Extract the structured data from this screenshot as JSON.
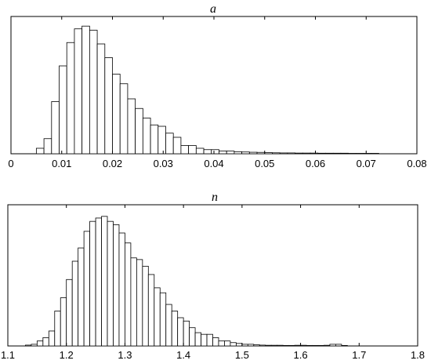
{
  "chart_data": [
    {
      "type": "bar",
      "title": "a",
      "xlabel": "",
      "ylabel": "",
      "xlim": [
        0,
        0.08
      ],
      "xticks": [
        "0",
        "0.01",
        "0.02",
        "0.03",
        "0.04",
        "0.05",
        "0.06",
        "0.07",
        "0.08"
      ],
      "bin_width": 0.0015,
      "bins_start": [
        0.005,
        0.0065,
        0.008,
        0.0095,
        0.011,
        0.0125,
        0.014,
        0.0155,
        0.017,
        0.0185,
        0.02,
        0.0215,
        0.023,
        0.0245,
        0.026,
        0.0275,
        0.029,
        0.0305,
        0.032,
        0.0335,
        0.035,
        0.0365,
        0.038,
        0.0395,
        0.041,
        0.0425,
        0.044,
        0.0455,
        0.047,
        0.0485,
        0.05,
        0.0515,
        0.053,
        0.0545,
        0.056,
        0.0575,
        0.059,
        0.0605,
        0.062,
        0.0635,
        0.065,
        0.0665,
        0.068,
        0.0695,
        0.071
      ],
      "values": [
        4,
        11,
        38,
        64,
        81,
        91,
        93,
        90,
        80,
        70,
        58,
        51,
        40,
        33,
        26,
        21,
        20,
        15,
        12,
        6,
        6,
        4,
        3,
        3,
        2,
        2,
        1.5,
        1.3,
        1.1,
        1.0,
        0.8,
        0.7,
        0.6,
        0.6,
        0.5,
        0.5,
        0.5,
        0.4,
        0.4,
        0.4,
        0.4,
        0.3,
        0.3,
        0.3,
        0.3
      ],
      "ylim": [
        0,
        100
      ],
      "grid": false
    },
    {
      "type": "bar",
      "title": "n",
      "xlabel": "",
      "ylabel": "",
      "xlim": [
        1.1,
        1.8
      ],
      "xticks": [
        "1.1",
        "1.2",
        "1.3",
        "1.4",
        "1.5",
        "1.6",
        "1.7",
        "1.8"
      ],
      "bin_width": 0.01,
      "bins_start": [
        1.13,
        1.14,
        1.15,
        1.16,
        1.17,
        1.18,
        1.19,
        1.2,
        1.21,
        1.22,
        1.23,
        1.24,
        1.25,
        1.26,
        1.27,
        1.28,
        1.29,
        1.3,
        1.31,
        1.32,
        1.33,
        1.34,
        1.35,
        1.36,
        1.37,
        1.38,
        1.39,
        1.4,
        1.41,
        1.42,
        1.43,
        1.44,
        1.45,
        1.46,
        1.47,
        1.48,
        1.49,
        1.5,
        1.51,
        1.52,
        1.53,
        1.54,
        1.55,
        1.56,
        1.57,
        1.58,
        1.59,
        1.6,
        1.61,
        1.62,
        1.63,
        1.64,
        1.65,
        1.66,
        1.67
      ],
      "values": [
        0.5,
        1,
        3,
        5,
        9,
        21,
        29,
        40,
        51,
        59,
        69,
        75,
        77,
        78,
        75,
        73,
        68,
        62,
        53,
        52,
        48,
        43,
        35,
        32,
        25,
        21,
        17,
        15,
        11,
        8,
        7,
        7,
        5,
        3,
        3,
        2,
        1.5,
        1,
        1,
        0.7,
        0.5,
        0.4,
        0.4,
        0.4,
        0.3,
        0.3,
        0.4,
        0.4,
        0.3,
        0.3,
        0.3,
        0.4,
        1,
        1,
        0.3
      ],
      "ylim": [
        0,
        85
      ],
      "grid": false
    }
  ]
}
